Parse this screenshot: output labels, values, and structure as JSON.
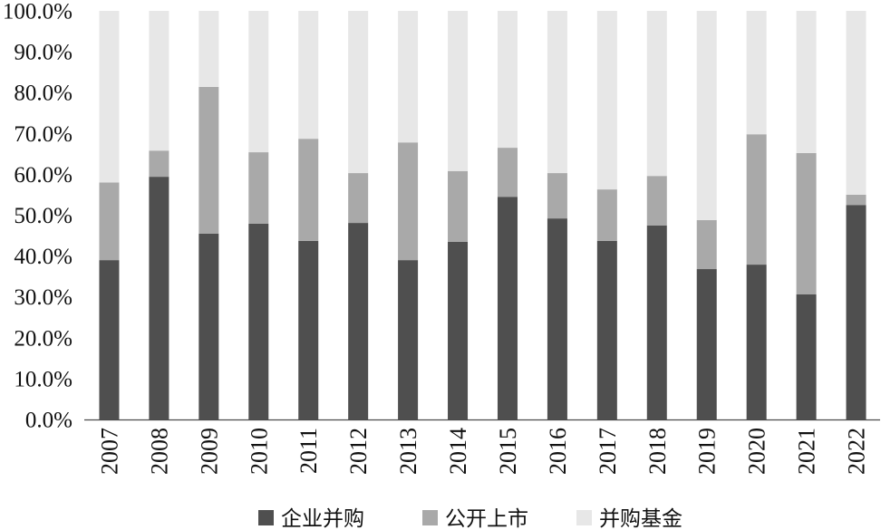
{
  "chart_data": {
    "type": "bar",
    "stacked": true,
    "categories": [
      "2007",
      "2008",
      "2009",
      "2010",
      "2011",
      "2012",
      "2013",
      "2014",
      "2015",
      "2016",
      "2017",
      "2018",
      "2019",
      "2020",
      "2021",
      "2022"
    ],
    "series": [
      {
        "name": "企业并购",
        "color": "#4f4f4f",
        "values": [
          39.0,
          59.4,
          45.5,
          47.9,
          43.7,
          48.1,
          39.0,
          43.5,
          54.5,
          49.2,
          43.7,
          47.5,
          36.8,
          37.9,
          30.6,
          52.5
        ]
      },
      {
        "name": "公开上市",
        "color": "#a9a9a9",
        "values": [
          19.0,
          6.4,
          35.9,
          17.5,
          25.0,
          12.2,
          28.8,
          17.3,
          12.0,
          11.1,
          12.6,
          12.1,
          12.0,
          31.9,
          34.6,
          2.5
        ]
      },
      {
        "name": "并购基金",
        "color": "#e7e7e7",
        "values": [
          42.0,
          34.2,
          18.6,
          34.6,
          31.3,
          39.7,
          32.2,
          39.2,
          33.5,
          39.7,
          43.7,
          40.4,
          51.2,
          30.2,
          34.8,
          45.0
        ]
      }
    ],
    "ylim": [
      0,
      100
    ],
    "y_tick_labels": [
      "0.0%",
      "10.0%",
      "20.0%",
      "30.0%",
      "40.0%",
      "50.0%",
      "60.0%",
      "70.0%",
      "80.0%",
      "90.0%",
      "100.0%"
    ],
    "grid": false,
    "legend": "bottom"
  }
}
